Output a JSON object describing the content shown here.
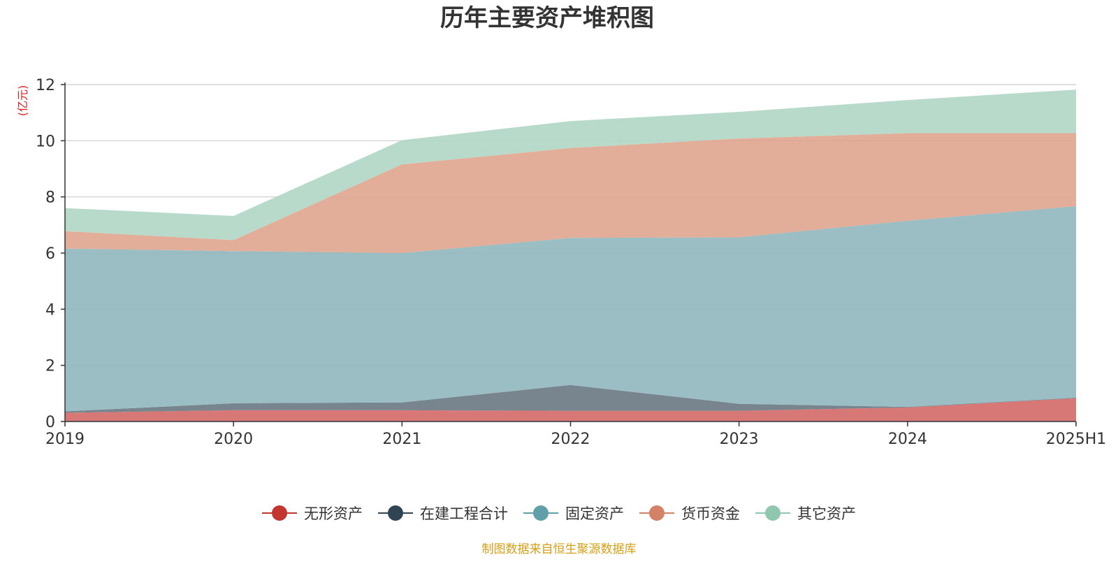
{
  "chart_data": {
    "type": "area",
    "stacked": true,
    "title": "历年主要资产堆积图",
    "ylabel": "(亿元)",
    "xlabel": "",
    "categories": [
      "2019",
      "2020",
      "2021",
      "2022",
      "2023",
      "2024",
      "2025H1"
    ],
    "ylim": [
      0,
      12
    ],
    "yticks": [
      0,
      2,
      4,
      6,
      8,
      10,
      12
    ],
    "grid": true,
    "legend_position": "bottom",
    "series": [
      {
        "name": "无形资产",
        "color": "#c23531",
        "area_color": "#d46d6a",
        "values": [
          0.31,
          0.4,
          0.4,
          0.38,
          0.38,
          0.5,
          0.83
        ]
      },
      {
        "name": "在建工程合计",
        "color": "#2f4554",
        "area_color": "#6d7b86",
        "values": [
          0.05,
          0.25,
          0.28,
          0.92,
          0.25,
          0.02,
          0.02
        ]
      },
      {
        "name": "固定资产",
        "color": "#61a0a8",
        "area_color": "#91b9bf",
        "values": [
          5.8,
          5.42,
          5.32,
          5.24,
          5.93,
          6.63,
          6.82
        ]
      },
      {
        "name": "货币资金",
        "color": "#d48265",
        "area_color": "#dfa690",
        "values": [
          0.62,
          0.39,
          3.16,
          3.2,
          3.52,
          3.12,
          2.6
        ]
      },
      {
        "name": "其它资产",
        "color": "#91c7ae",
        "area_color": "#b2d7c5",
        "values": [
          0.82,
          0.86,
          0.86,
          0.96,
          0.95,
          1.18,
          1.55
        ]
      }
    ]
  },
  "footer": {
    "source": "制图数据来自恒生聚源数据库"
  }
}
